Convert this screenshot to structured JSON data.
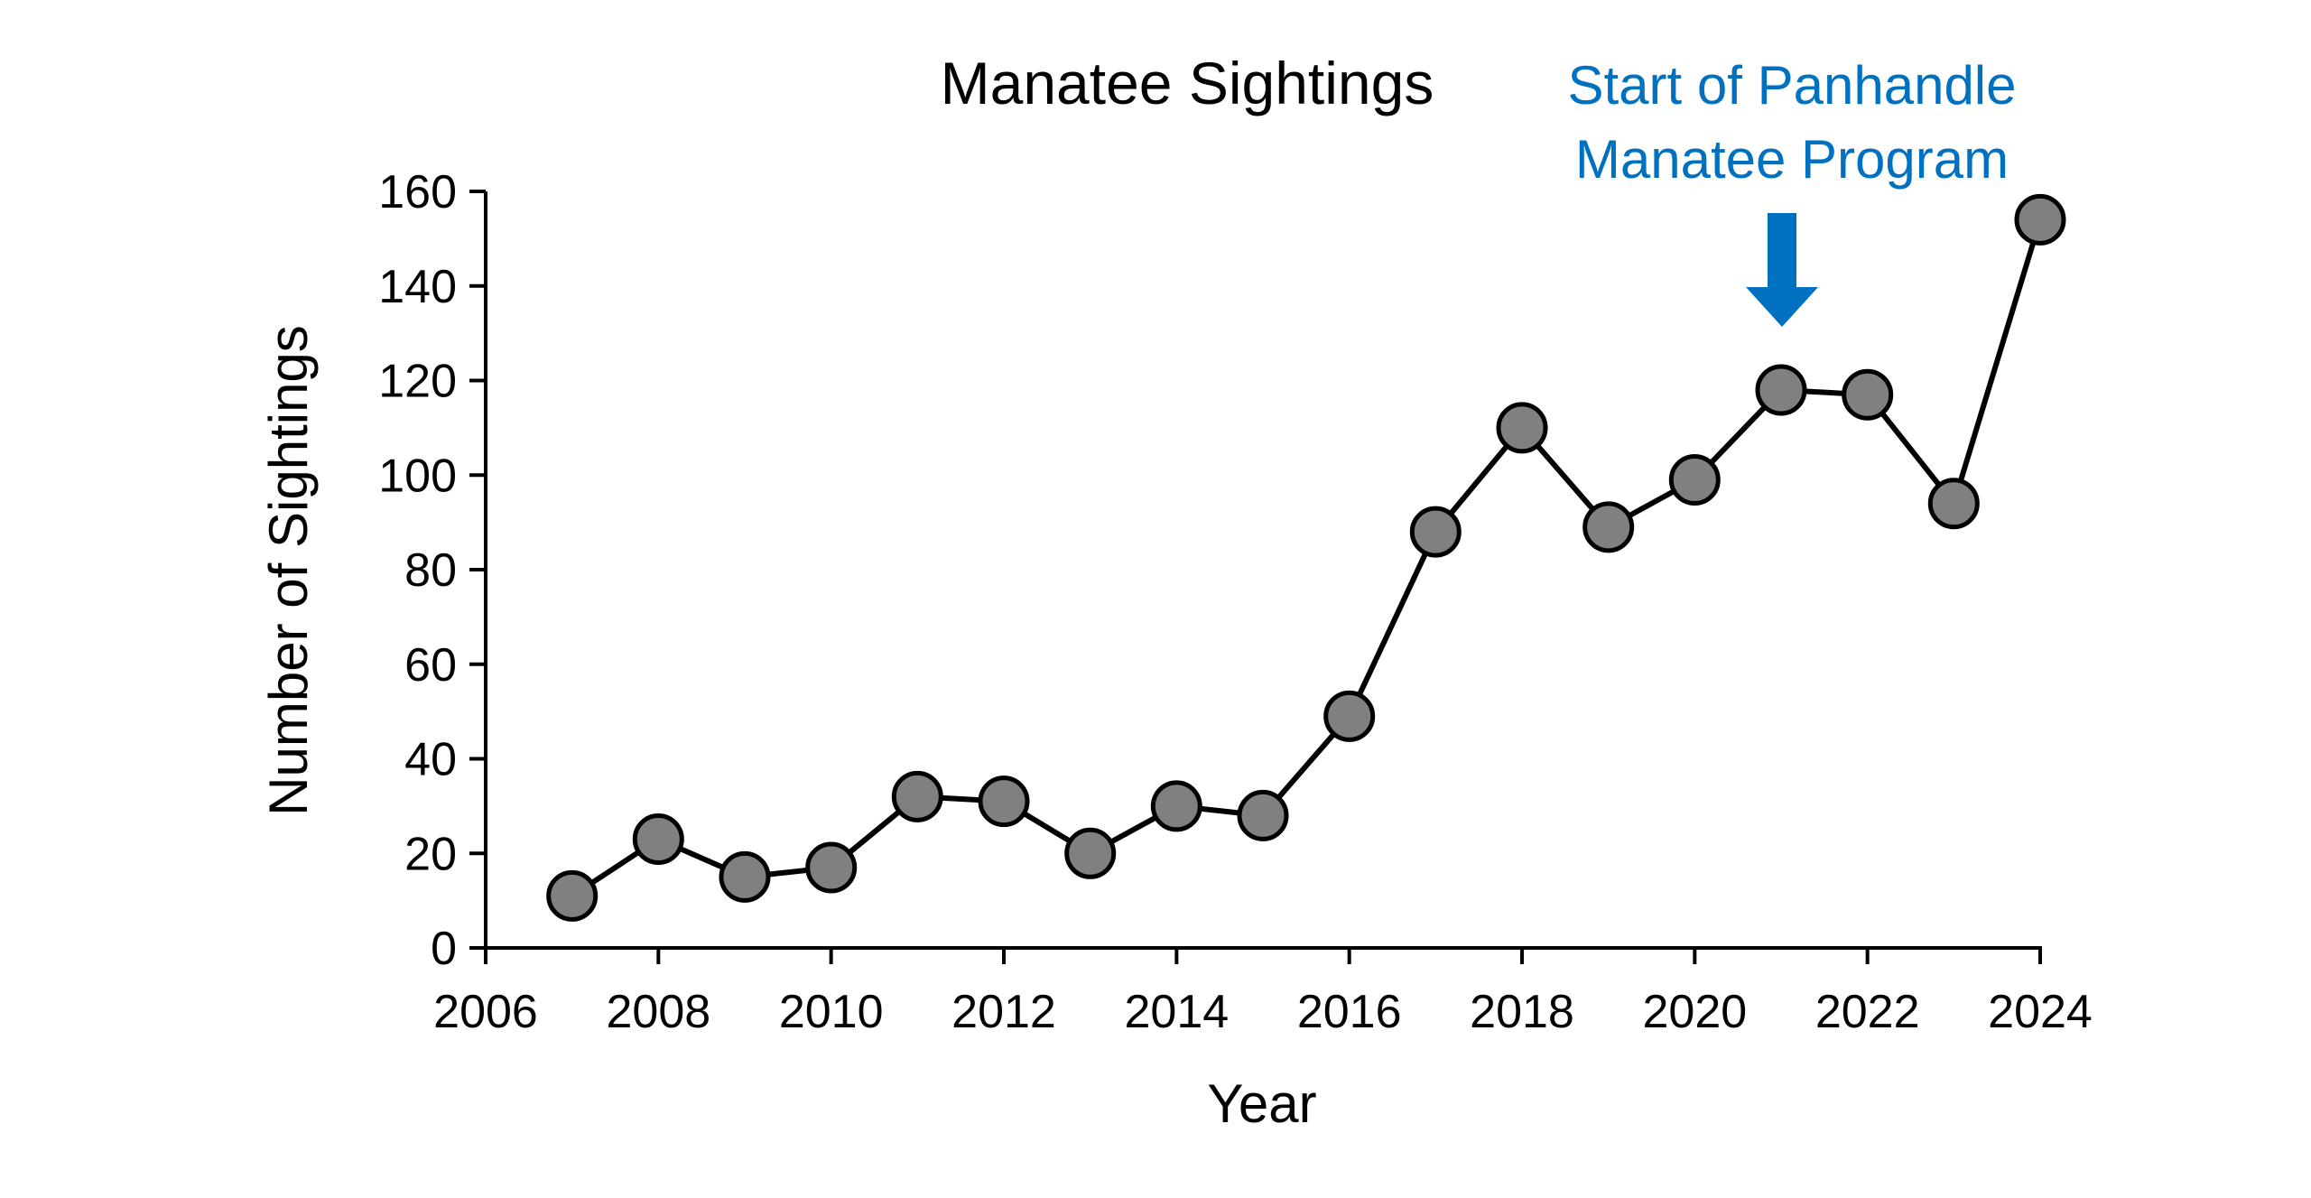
{
  "chart_data": {
    "type": "line",
    "title": "Manatee Sightings",
    "xlabel": "Year",
    "ylabel": "Number of Sightings",
    "xlim": [
      2006,
      2024
    ],
    "ylim": [
      0,
      160
    ],
    "x_ticks": [
      2006,
      2008,
      2010,
      2012,
      2014,
      2016,
      2018,
      2020,
      2022,
      2024
    ],
    "y_ticks": [
      0,
      20,
      40,
      60,
      80,
      100,
      120,
      140,
      160
    ],
    "grid": false,
    "series": [
      {
        "x": [
          2007,
          2008,
          2009,
          2010,
          2011,
          2012,
          2013,
          2014,
          2015,
          2016,
          2017,
          2018,
          2019,
          2020,
          2021,
          2022,
          2023,
          2024
        ],
        "values": [
          11,
          23,
          15,
          17,
          32,
          31,
          20,
          30,
          28,
          49,
          88,
          110,
          89,
          99,
          118,
          117,
          94,
          154
        ],
        "line_color": "#000000",
        "marker_color": "#808080"
      }
    ],
    "annotations": [
      {
        "lines": [
          "Start of Panhandle",
          "Manatee Program"
        ],
        "x": 2021,
        "color": "#0070C0"
      }
    ]
  }
}
